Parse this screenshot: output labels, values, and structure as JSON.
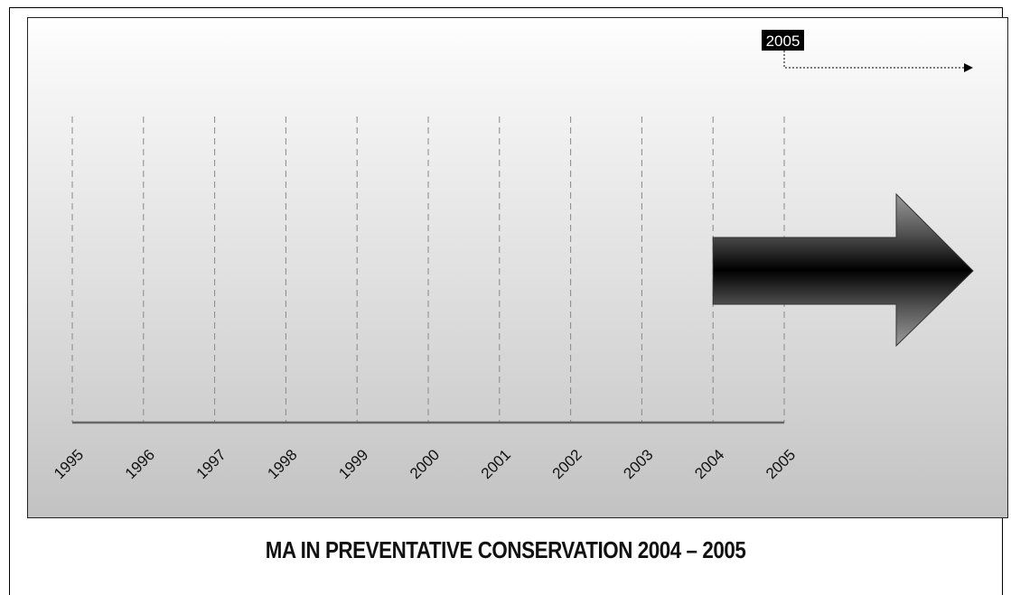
{
  "timeline": {
    "years": [
      "1995",
      "1996",
      "1997",
      "1998",
      "1999",
      "2000",
      "2001",
      "2002",
      "2003",
      "2004",
      "2005"
    ],
    "highlight_start": "2004",
    "highlight_end": "2005",
    "badge": "2005"
  },
  "caption": "MA IN PREVENTATIVE CONSERVATION 2004 – 2005",
  "colors": {
    "axis": "#555555",
    "guide": "#888888",
    "arrow_dark": "#000000",
    "arrow_light": "#8a8a8a"
  }
}
